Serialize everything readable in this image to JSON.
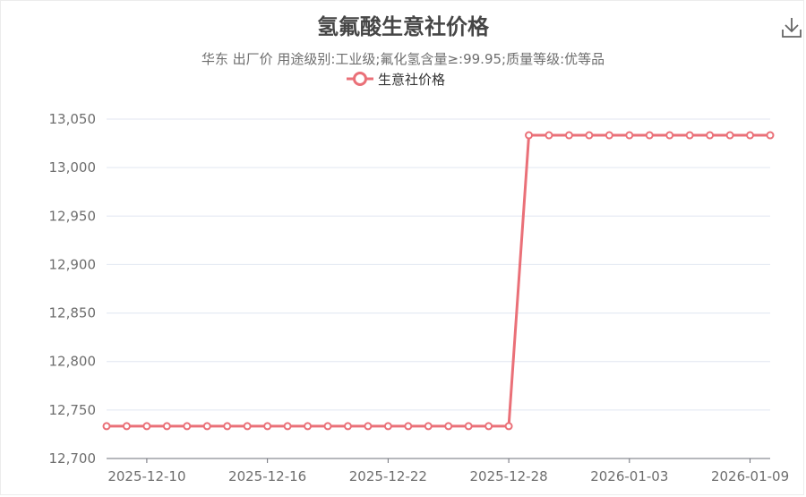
{
  "header": {
    "title": "氢氟酸生意社价格",
    "subtitle": "华东 出厂价 用途级别:工业级;氟化氢含量≥:99.95;质量等级:优等品"
  },
  "toolbar": {
    "download_icon": "download-icon"
  },
  "colors": {
    "series": "#ea7078",
    "grid": "#e0e6f1",
    "axis": "#6e7079",
    "text": "#6e6e6e"
  },
  "chart_data": {
    "type": "line",
    "title": "氢氟酸生意社价格",
    "subtitle": "华东 出厂价 用途级别:工业级;氟化氢含量≥:99.95;质量等级:优等品",
    "legend": {
      "position": "top-center",
      "entries": [
        "生意社价格"
      ]
    },
    "grid": true,
    "ylim": [
      12700,
      13050
    ],
    "yticks": [
      12700,
      12750,
      12800,
      12850,
      12900,
      12950,
      13000,
      13050
    ],
    "ytick_labels": [
      "12,700",
      "12,750",
      "12,800",
      "12,850",
      "12,900",
      "12,950",
      "13,000",
      "13,050"
    ],
    "xtick_labels": [
      "2025-12-10",
      "2025-12-16",
      "2025-12-22",
      "2025-12-28",
      "2026-01-03",
      "2026-01-09"
    ],
    "x": [
      "2025-12-08",
      "2025-12-09",
      "2025-12-10",
      "2025-12-11",
      "2025-12-12",
      "2025-12-13",
      "2025-12-14",
      "2025-12-15",
      "2025-12-16",
      "2025-12-17",
      "2025-12-18",
      "2025-12-19",
      "2025-12-20",
      "2025-12-21",
      "2025-12-22",
      "2025-12-23",
      "2025-12-24",
      "2025-12-25",
      "2025-12-26",
      "2025-12-27",
      "2025-12-28",
      "2025-12-29",
      "2025-12-30",
      "2025-12-31",
      "2026-01-01",
      "2026-01-02",
      "2026-01-03",
      "2026-01-04",
      "2026-01-05",
      "2026-01-06",
      "2026-01-07",
      "2026-01-08",
      "2026-01-09",
      "2026-01-10"
    ],
    "series": [
      {
        "name": "生意社价格",
        "values": [
          12733.33,
          12733.33,
          12733.33,
          12733.33,
          12733.33,
          12733.33,
          12733.33,
          12733.33,
          12733.33,
          12733.33,
          12733.33,
          12733.33,
          12733.33,
          12733.33,
          12733.33,
          12733.33,
          12733.33,
          12733.33,
          12733.33,
          12733.33,
          12733.33,
          13033.33,
          13033.33,
          13033.33,
          13033.33,
          13033.33,
          13033.33,
          13033.33,
          13033.33,
          13033.33,
          13033.33,
          13033.33,
          13033.33,
          13033.33
        ]
      }
    ]
  }
}
